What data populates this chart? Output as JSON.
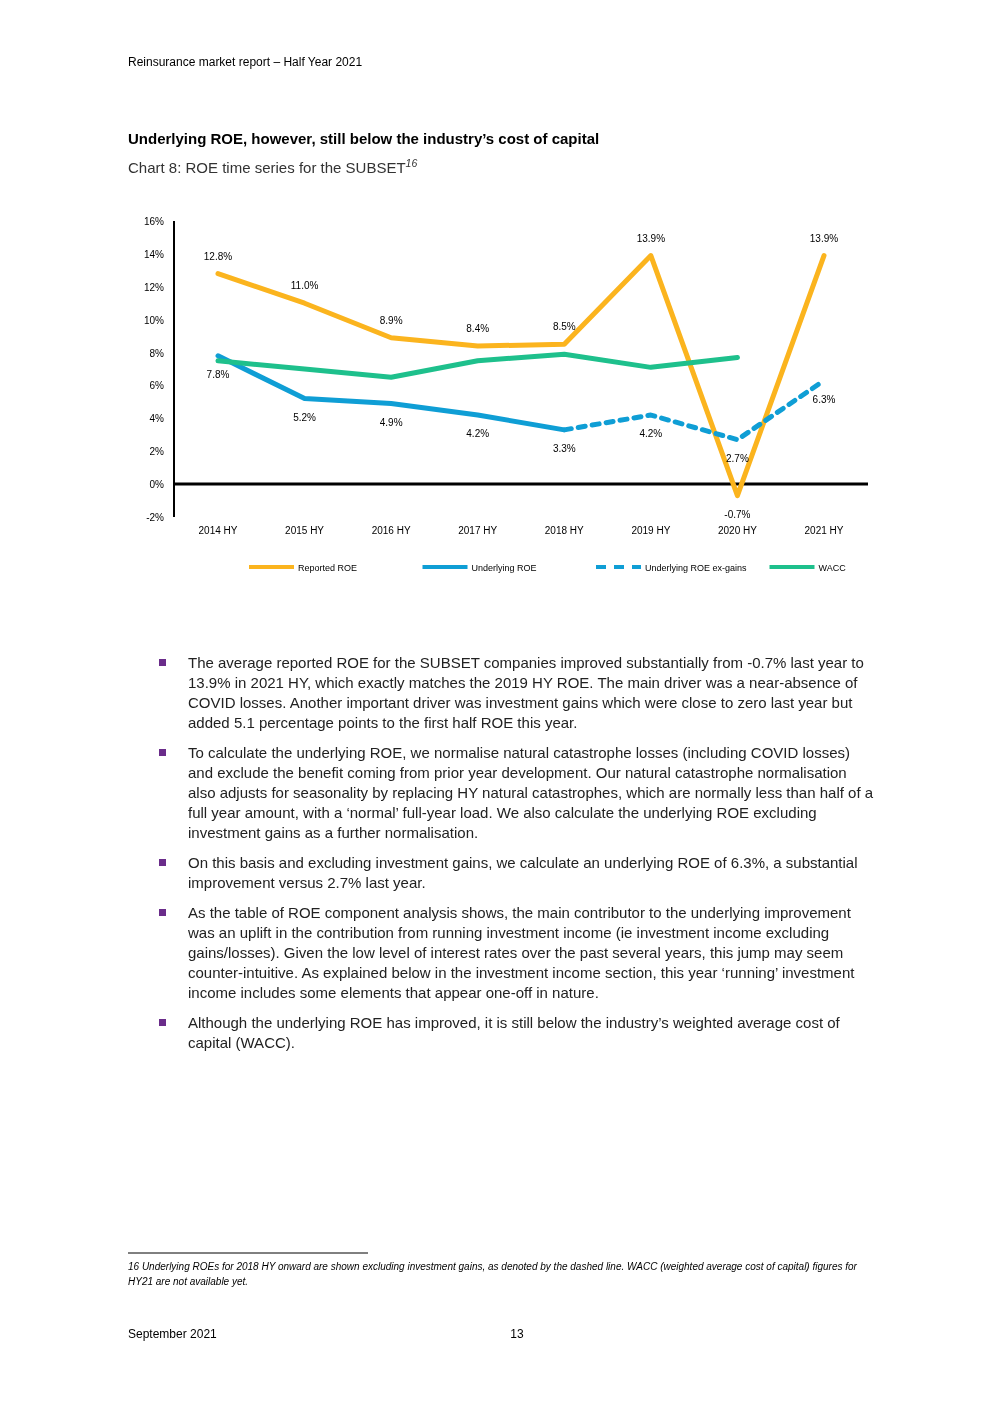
{
  "chart_data": {
    "type": "line",
    "title": "Underlying ROE, however, still below the industry’s cost of capital",
    "subtitle": "Chart 8: ROE time series for the SUBSET$^{16}$",
    "categories": [
      "2014 HY",
      "2015 HY",
      "2016 HY",
      "2017 HY",
      "2018 HY",
      "2019 HY",
      "2020 HY",
      "2021 HY"
    ],
    "series": [
      {
        "name": "Reported ROE",
        "color": "#fbb41e",
        "line_style": "solid",
        "values": [
          12.8,
          11.0,
          8.9,
          8.4,
          8.5,
          13.9,
          -0.7,
          13.9
        ],
        "value_labels": [
          "12.8%",
          "11.0%",
          "8.9%",
          "8.4%",
          "8.5%",
          "13.9%",
          "-0.7%",
          "13.9%"
        ]
      },
      {
        "name": "Underlying ROE",
        "color": "#0f9ed5",
        "line_style": "solid",
        "values": [
          7.8,
          5.2,
          4.9,
          4.2,
          3.3,
          null,
          null,
          null
        ],
        "value_labels": [
          "7.8%",
          "5.2%",
          "4.9%",
          "4.2%",
          null,
          null,
          null,
          null
        ]
      },
      {
        "name": "Underlying ROE ex-gains",
        "color": "#0f9ed5",
        "line_style": "dashed",
        "values": [
          null,
          null,
          null,
          null,
          3.3,
          4.2,
          2.7,
          6.3
        ],
        "value_labels": [
          null,
          null,
          null,
          null,
          "3.3%",
          "4.2%",
          "2.7%",
          "6.3%"
        ]
      },
      {
        "name": "WACC",
        "color": "#1ec08c",
        "line_style": "solid",
        "values": [
          7.5,
          7.0,
          6.5,
          7.5,
          7.9,
          7.1,
          7.7,
          null
        ]
      }
    ],
    "ylim": [
      -2,
      16
    ],
    "yticks": [
      {
        "value": -2,
        "label": "-2%"
      },
      {
        "value": 0,
        "label": "0%"
      },
      {
        "value": 2,
        "label": "2%"
      },
      {
        "value": 4,
        "label": "4%"
      },
      {
        "value": 6,
        "label": "6%"
      },
      {
        "value": 8,
        "label": "8%"
      },
      {
        "value": 10,
        "label": "10%"
      },
      {
        "value": 12,
        "label": "12%"
      },
      {
        "value": 14,
        "label": "14%"
      },
      {
        "value": 16,
        "label": "16%"
      }
    ],
    "ref_lines": [
      {
        "axis": "y",
        "value": 0,
        "color": "#000000"
      }
    ],
    "grid": false,
    "legend": "bottom",
    "marker": "none",
    "annotations": [
      "Reinsurance market report – Half Year 2021",
      "The average reported ROE for the SUBSET companies improved substantially from -0.7% last year to 13.9% in 2021 HY, which exactly matches the 2019 HY ROE.  The main driver was a near-absence of COVID losses.  Another important driver was investment gains which were close to zero last year but added 5.1 percentage points to the first half ROE this year.",
      "To calculate the underlying ROE, we normalise natural catastrophe losses (including COVID losses) and exclude the benefit coming from prior year development. Our natural catastrophe normalisation also adjusts for seasonality by replacing HY natural catastrophes, which are normally less than half of a full year amount, with a ‘normal’ full-year load.  We also calculate the underlying ROE excluding investment gains as a further normalisation.",
      "On this basis and excluding investment gains, we calculate an underlying ROE of 6.3%, a substantial improvement versus 2.7% last year.",
      "As the table of ROE component analysis shows, the main contributor to the underlying improvement was an uplift in the contribution from running investment income (ie investment income excluding gains/losses).  Given the low level of interest rates over the past several years, this jump may seem counter-intuitive.  As explained below in the investment income section, this year ‘running’ investment income includes some elements that appear one-off in nature.",
      "Although the underlying ROE has improved, it is still below the industry’s weighted average cost of capital (WACC).",
      "16 Underlying ROEs for 2018 HY onward are shown excluding investment gains, as denoted by the dashed line.  WACC (weighted average cost of capital) figures for HY21 are not available yet.",
      "September 2021",
      "13"
    ]
  }
}
